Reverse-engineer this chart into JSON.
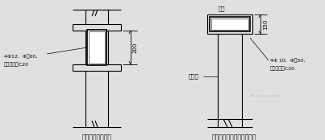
{
  "bg_color": "#e0e0e0",
  "line_color": "#000000",
  "white": "#ffffff",
  "title1": "后浇带剪浇带大样",
  "title2": "后础外墙窗台下础设带大样",
  "label1_line1": "4Φ12,  Φ悂00,",
  "label1_line2": "混凝土等级C20",
  "label2_dim": "200",
  "label3": "贿台",
  "label4": "后础牆",
  "label5_line1": "4Φ 10,  Φ殂50,",
  "label5_line2": "混凝土等级C20",
  "label6_dim": "150",
  "watermark": "zhulong.com"
}
